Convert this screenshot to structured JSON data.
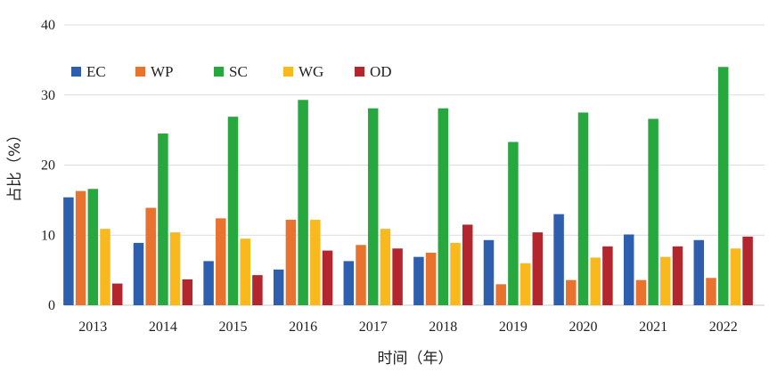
{
  "chart_data": {
    "type": "bar",
    "title": "",
    "xlabel": "时间（年）",
    "ylabel": "占比（%）",
    "ylim": [
      0,
      40
    ],
    "yticks": [
      0,
      10,
      20,
      30,
      40
    ],
    "grid": true,
    "legend_position": "top-left",
    "categories": [
      "2013",
      "2014",
      "2015",
      "2016",
      "2017",
      "2018",
      "2019",
      "2020",
      "2021",
      "2022"
    ],
    "series": [
      {
        "name": "EC",
        "color": "#2E5FAE",
        "values": [
          15.4,
          8.9,
          6.3,
          5.1,
          6.3,
          6.9,
          9.3,
          13.0,
          10.1,
          9.3
        ]
      },
      {
        "name": "WP",
        "color": "#E8722E",
        "values": [
          16.3,
          13.9,
          12.4,
          12.2,
          8.6,
          7.5,
          3.0,
          3.6,
          3.6,
          3.9
        ]
      },
      {
        "name": "SC",
        "color": "#27A83F",
        "values": [
          16.6,
          24.5,
          26.9,
          29.3,
          28.1,
          28.1,
          23.3,
          27.5,
          26.6,
          34.0
        ]
      },
      {
        "name": "WG",
        "color": "#F9B81C",
        "values": [
          10.9,
          10.4,
          9.5,
          12.2,
          10.9,
          8.9,
          6.0,
          6.8,
          6.9,
          8.1
        ]
      },
      {
        "name": "OD",
        "color": "#B3262E",
        "values": [
          3.1,
          3.7,
          4.3,
          7.8,
          8.1,
          11.5,
          10.4,
          8.4,
          8.4,
          9.8
        ]
      }
    ]
  }
}
